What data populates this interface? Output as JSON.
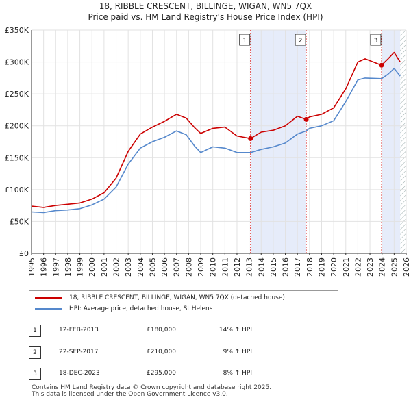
{
  "chart_data": {
    "type": "line",
    "title": "18, RIBBLE CRESCENT, BILLINGE, WIGAN, WN5 7QX",
    "subtitle": "Price paid vs. HM Land Registry's House Price Index (HPI)",
    "x_ticks": [
      "1995",
      "1996",
      "1997",
      "1998",
      "1999",
      "2000",
      "2001",
      "2002",
      "2003",
      "2004",
      "2005",
      "2006",
      "2007",
      "2008",
      "2009",
      "2010",
      "2011",
      "2012",
      "2013",
      "2014",
      "2015",
      "2016",
      "2017",
      "2018",
      "2019",
      "2020",
      "2021",
      "2022",
      "2023",
      "2024",
      "2025",
      "2026"
    ],
    "y_ticks": [
      "£0",
      "£50K",
      "£100K",
      "£150K",
      "£200K",
      "£250K",
      "£300K",
      "£350K"
    ],
    "y_tick_values": [
      0,
      50000,
      100000,
      150000,
      200000,
      250000,
      300000,
      350000
    ],
    "xlim": [
      1995,
      2026
    ],
    "ylim": [
      0,
      350000
    ],
    "grid": true,
    "series": [
      {
        "name": "18, RIBBLE CRESCENT, BILLINGE, WIGAN, WN5 7QX (detached house)",
        "color": "#cc0000",
        "points": [
          [
            1995,
            74000
          ],
          [
            1996,
            72000
          ],
          [
            1997,
            75000
          ],
          [
            1998,
            77000
          ],
          [
            1999,
            79000
          ],
          [
            2000,
            85000
          ],
          [
            2001,
            95000
          ],
          [
            2002,
            118000
          ],
          [
            2003,
            160000
          ],
          [
            2004,
            187000
          ],
          [
            2005,
            198000
          ],
          [
            2006,
            207000
          ],
          [
            2007,
            218000
          ],
          [
            2007.8,
            212000
          ],
          [
            2008.5,
            197000
          ],
          [
            2009,
            188000
          ],
          [
            2010,
            196000
          ],
          [
            2011,
            198000
          ],
          [
            2012,
            184000
          ],
          [
            2013.12,
            180000
          ],
          [
            2014,
            190000
          ],
          [
            2015,
            193000
          ],
          [
            2016,
            200000
          ],
          [
            2017,
            215000
          ],
          [
            2017.73,
            210000
          ],
          [
            2018,
            214000
          ],
          [
            2019,
            218000
          ],
          [
            2020,
            228000
          ],
          [
            2021,
            258000
          ],
          [
            2022,
            300000
          ],
          [
            2022.6,
            305000
          ],
          [
            2023.96,
            295000
          ],
          [
            2024.5,
            305000
          ],
          [
            2025,
            315000
          ],
          [
            2025.5,
            300000
          ]
        ]
      },
      {
        "name": "HPI: Average price, detached house, St Helens",
        "color": "#5588cc",
        "points": [
          [
            1995,
            65000
          ],
          [
            1996,
            64000
          ],
          [
            1997,
            67000
          ],
          [
            1998,
            68000
          ],
          [
            1999,
            70000
          ],
          [
            2000,
            76000
          ],
          [
            2001,
            85000
          ],
          [
            2002,
            104000
          ],
          [
            2003,
            140000
          ],
          [
            2004,
            165000
          ],
          [
            2005,
            175000
          ],
          [
            2006,
            182000
          ],
          [
            2007,
            192000
          ],
          [
            2007.8,
            186000
          ],
          [
            2008.5,
            168000
          ],
          [
            2009,
            158000
          ],
          [
            2010,
            167000
          ],
          [
            2011,
            165000
          ],
          [
            2012,
            158000
          ],
          [
            2013.12,
            158000
          ],
          [
            2014,
            163000
          ],
          [
            2015,
            167000
          ],
          [
            2016,
            173000
          ],
          [
            2017,
            187000
          ],
          [
            2017.73,
            192000
          ],
          [
            2018,
            196000
          ],
          [
            2019,
            200000
          ],
          [
            2020,
            208000
          ],
          [
            2021,
            238000
          ],
          [
            2022,
            272000
          ],
          [
            2022.6,
            275000
          ],
          [
            2023.96,
            274000
          ],
          [
            2024.5,
            281000
          ],
          [
            2025,
            290000
          ],
          [
            2025.5,
            278000
          ]
        ]
      }
    ],
    "sales": [
      {
        "label": "1",
        "x": 2013.12,
        "value": 180000,
        "date": "12-FEB-2013",
        "price": "£180,000",
        "hpi": "14% ↑ HPI"
      },
      {
        "label": "2",
        "x": 2017.73,
        "value": 210000,
        "date": "22-SEP-2017",
        "price": "£210,000",
        "hpi": "9% ↑ HPI"
      },
      {
        "label": "3",
        "x": 2023.96,
        "value": 295000,
        "date": "18-DEC-2023",
        "price": "£295,000",
        "hpi": "8% ↑ HPI"
      }
    ],
    "shaded_ranges": [
      [
        2013.12,
        2017.73
      ],
      [
        2023.96,
        2025.5
      ]
    ],
    "hatched_from": 2025.5
  },
  "footer": {
    "line1": "Contains HM Land Registry data © Crown copyright and database right 2025.",
    "line2": "This data is licensed under the Open Government Licence v3.0."
  }
}
